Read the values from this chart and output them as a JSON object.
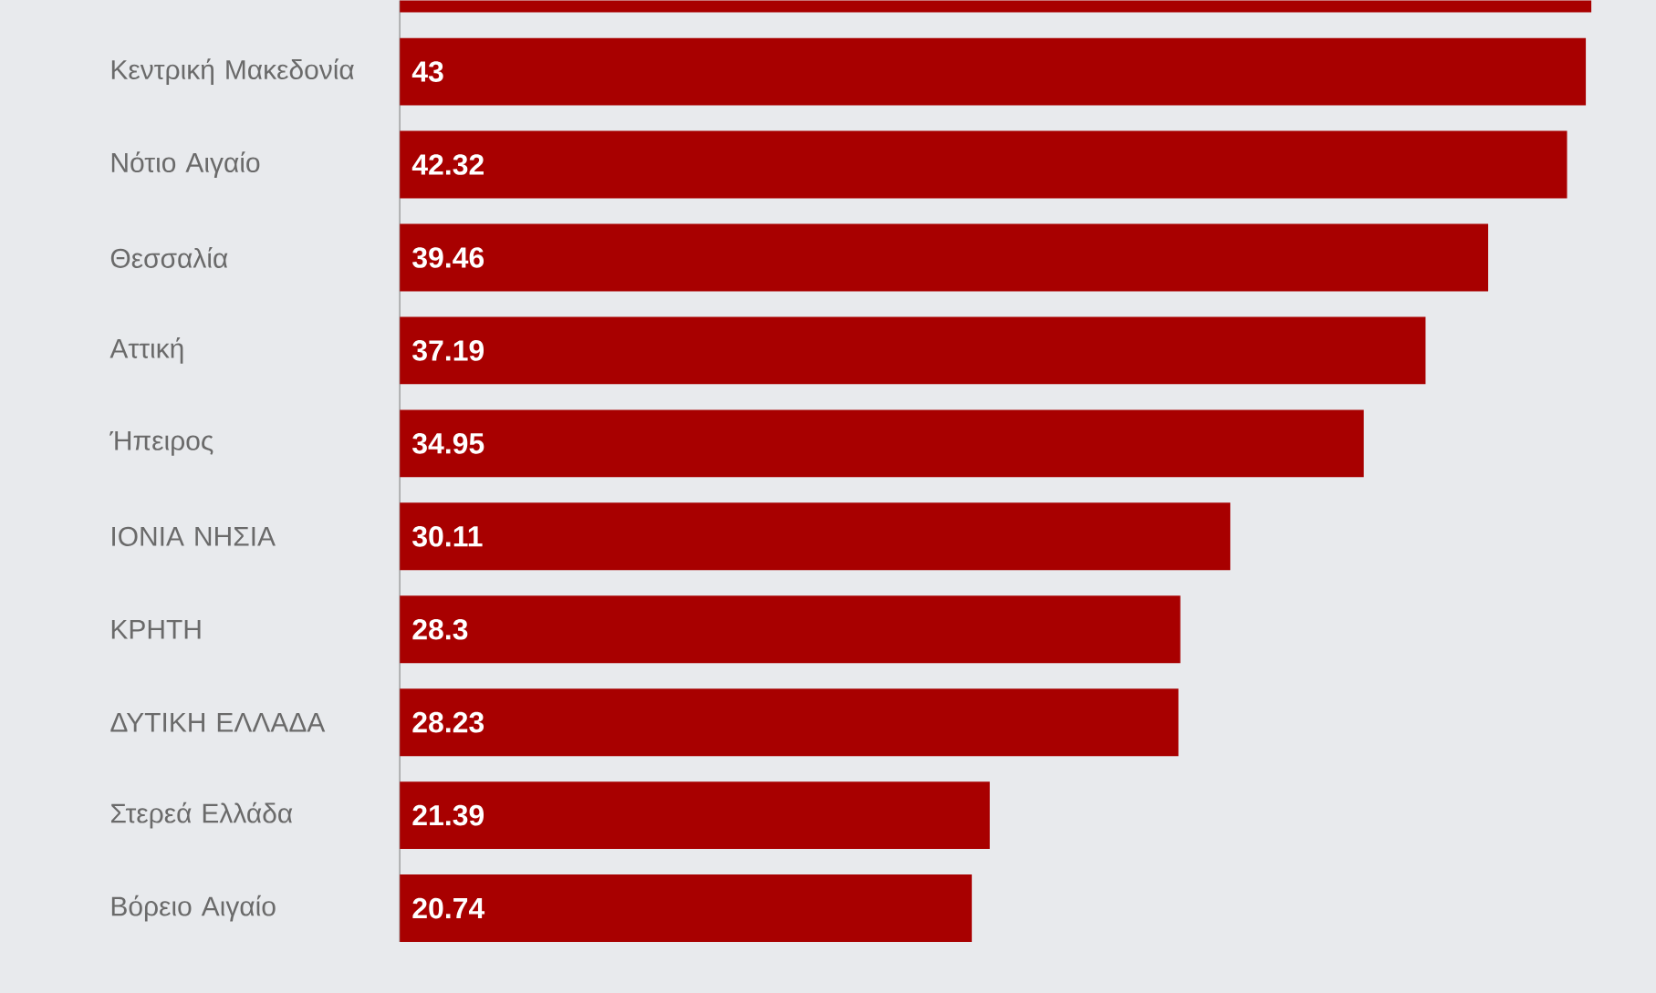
{
  "chart_data": {
    "type": "bar",
    "orientation": "horizontal",
    "categories": [
      null,
      "Κεντρική Μακεδονία",
      "Νότιο Αιγαίο",
      "Θεσσαλία",
      "Αττική",
      "Ήπειρος",
      "ΙΟΝΙΑ ΝΗΣΙΑ",
      "ΚΡΗΤΗ",
      "ΔΥΤΙΚΗ ΕΛΛΑΔΑ",
      "Στερεά Ελλάδα",
      "Βόρειο Αιγαίο"
    ],
    "values": [
      43.2,
      43,
      42.32,
      39.46,
      37.19,
      34.95,
      30.11,
      28.3,
      28.23,
      21.39,
      20.74
    ],
    "value_labels": [
      null,
      "43",
      "42.32",
      "39.46",
      "37.19",
      "34.95",
      "30.11",
      "28.3",
      "28.23",
      "21.39",
      "20.74"
    ],
    "color": "#a80000"
  }
}
